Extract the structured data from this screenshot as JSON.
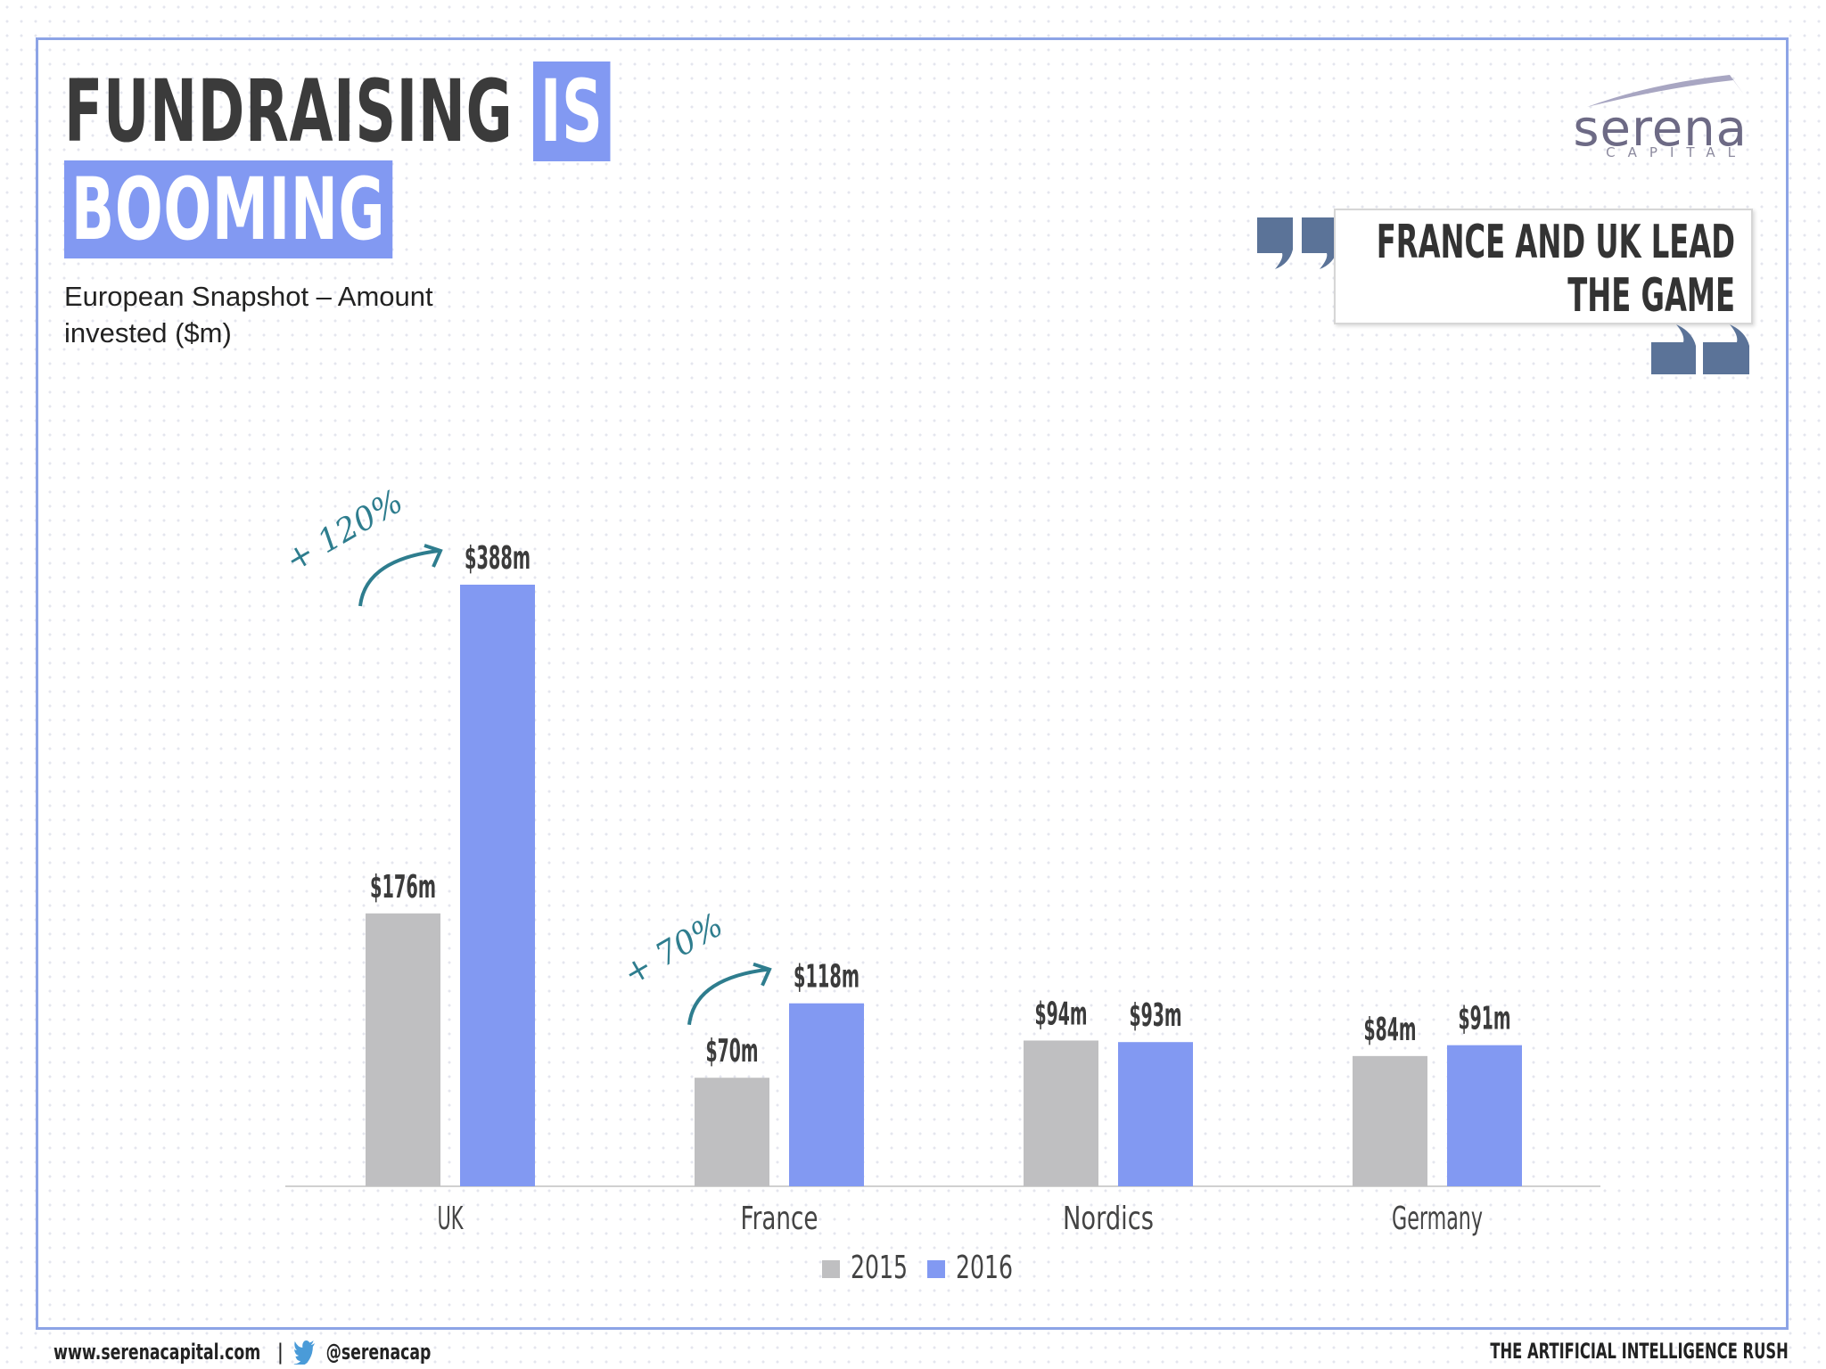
{
  "header": {
    "title_part1": "FUNDRAISING",
    "title_part2": "IS",
    "title_part3": "BOOMING",
    "subtitle": "European Snapshot – Amount invested ($m)"
  },
  "logo": {
    "name": "serena",
    "sub": "CAPITAL"
  },
  "quote": {
    "text": "FRANCE AND UK LEAD THE GAME"
  },
  "footer": {
    "website": "www.serenacapital.com",
    "separator": "|",
    "twitter": "@serenacap",
    "report_title": "THE ARTIFICIAL INTELLIGENCE RUSH"
  },
  "colors": {
    "series_2015": "#bfbfc1",
    "series_2016": "#8299f2",
    "accent": "#8299f2",
    "annotation": "#2e7d8e",
    "quote_mark": "#5b7398"
  },
  "chart_data": {
    "type": "bar",
    "title": "",
    "categories": [
      "UK",
      "France",
      "Nordics",
      "Germany"
    ],
    "series": [
      {
        "name": "2015",
        "values": [
          176,
          70,
          94,
          84
        ],
        "labels": [
          "$176m",
          "$70m",
          "$94m",
          "$84m"
        ]
      },
      {
        "name": "2016",
        "values": [
          388,
          118,
          93,
          91
        ],
        "labels": [
          "$388m",
          "$118m",
          "$93m",
          "$91m"
        ]
      }
    ],
    "ylim": [
      0,
      388
    ],
    "grid": false,
    "legend": "bottom-center",
    "annotations": [
      {
        "category": "UK",
        "text": "+ 120%"
      },
      {
        "category": "France",
        "text": "+ 70%"
      }
    ]
  }
}
